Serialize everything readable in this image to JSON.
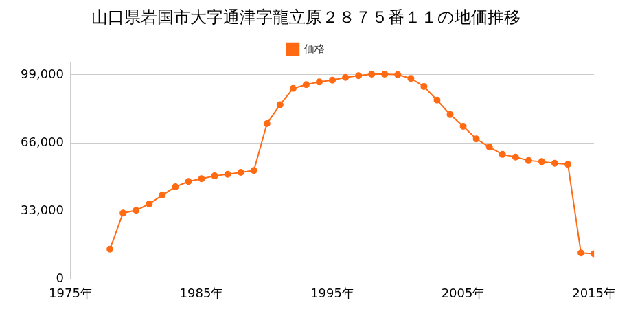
{
  "chart_data": {
    "type": "line",
    "title": "山口県岩国市大字通津字龍立原２８７５番１１の地価推移",
    "x": [
      1978,
      1979,
      1980,
      1981,
      1982,
      1983,
      1984,
      1985,
      1986,
      1987,
      1988,
      1989,
      1990,
      1991,
      1992,
      1993,
      1994,
      1995,
      1996,
      1997,
      1998,
      1999,
      2000,
      2001,
      2002,
      2003,
      2004,
      2005,
      2006,
      2007,
      2008,
      2009,
      2010,
      2011,
      2012,
      2013,
      2014,
      2015
    ],
    "series": [
      {
        "name": "価格",
        "color": "#ff6a13",
        "marker": "circle",
        "values": [
          14500,
          32000,
          33300,
          36400,
          40700,
          44700,
          47300,
          48600,
          50000,
          50800,
          51700,
          52600,
          75300,
          84500,
          92400,
          94200,
          95500,
          96400,
          97700,
          98500,
          99300,
          99300,
          99000,
          97200,
          93300,
          86700,
          79700,
          74000,
          67900,
          64000,
          60400,
          59100,
          57400,
          56900,
          56100,
          55600,
          12700,
          12300
        ]
      }
    ],
    "xlim": [
      1975,
      2015
    ],
    "xticks": [
      {
        "value": 1975,
        "label": "1975年"
      },
      {
        "value": 1985,
        "label": "1985年"
      },
      {
        "value": 1995,
        "label": "1995年"
      },
      {
        "value": 2005,
        "label": "2005年"
      },
      {
        "value": 2015,
        "label": "2015年"
      }
    ],
    "ylim": [
      0,
      105000
    ],
    "yticks": [
      0,
      {
        "value": 33000,
        "label": "33,000"
      },
      {
        "value": 66000,
        "label": "66,000"
      },
      {
        "value": 99000,
        "label": "99,000"
      }
    ],
    "grid": true,
    "legend": "top"
  }
}
